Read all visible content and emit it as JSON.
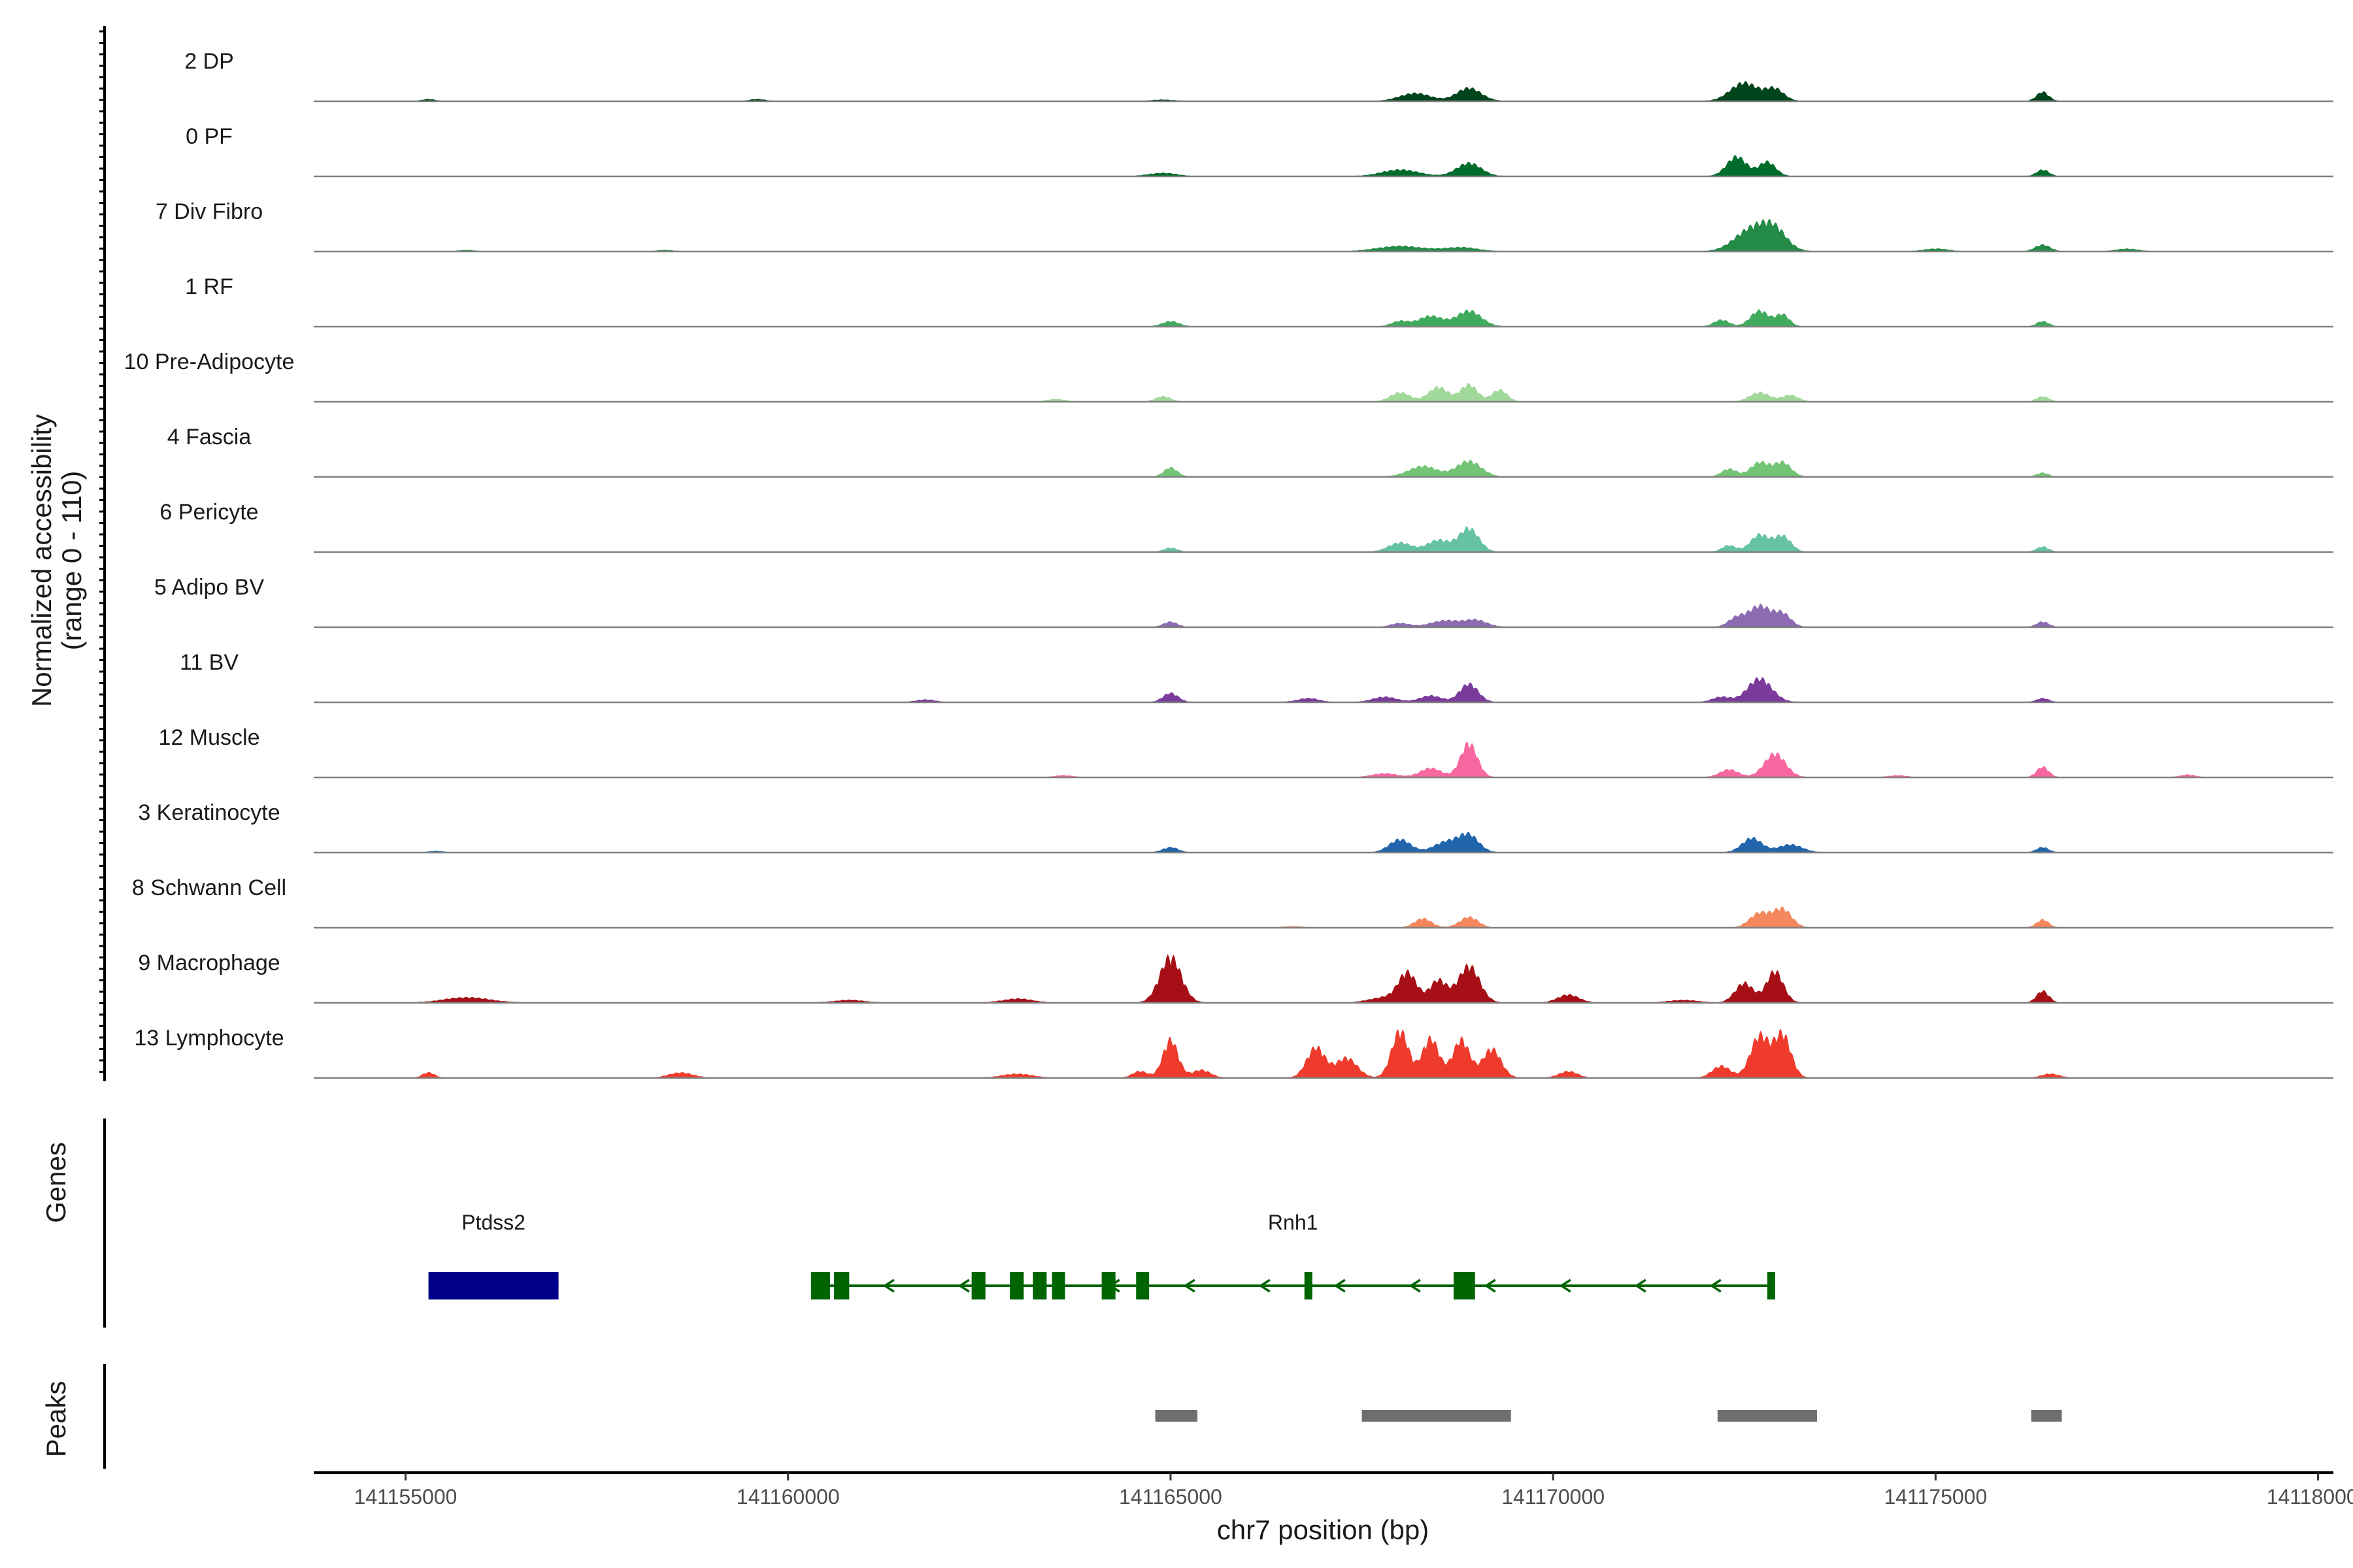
{
  "chart_data": {
    "type": "area",
    "title": "",
    "chromosome": "chr7",
    "xlabel": "chr7 position (bp)",
    "ylabel": "Normalized accessibility",
    "ylabel_range": "(range 0 - 110)",
    "xlim": [
      141153800,
      141180200
    ],
    "ylim": [
      0,
      110
    ],
    "x_ticks": [
      141155000,
      141160000,
      141165000,
      141170000,
      141175000,
      141180000
    ],
    "x_tick_labels": [
      "141155000",
      "141160000",
      "141165000",
      "141170000",
      "141175000",
      "141180000"
    ],
    "coverage_region": [
      141153800,
      141180200
    ],
    "panels": {
      "genes_label": "Genes",
      "peaks_label": "Peaks"
    },
    "series": [
      {
        "name": "2 DP",
        "color": "#00441b",
        "peaks": [
          [
            141155300,
            3,
            80
          ],
          [
            141159600,
            3,
            100
          ],
          [
            141164900,
            2,
            150
          ],
          [
            141168200,
            12,
            200
          ],
          [
            141168900,
            20,
            160
          ],
          [
            141172500,
            28,
            180
          ],
          [
            141172900,
            18,
            120
          ],
          [
            141176400,
            14,
            80
          ]
        ]
      },
      {
        "name": "0 PF",
        "color": "#006d2c",
        "peaks": [
          [
            141164900,
            5,
            180
          ],
          [
            141168000,
            10,
            240
          ],
          [
            141168900,
            20,
            160
          ],
          [
            141172400,
            30,
            130
          ],
          [
            141172800,
            22,
            110
          ],
          [
            141176400,
            10,
            80
          ]
        ]
      },
      {
        "name": "7 Div Fibro",
        "color": "#238b45",
        "peaks": [
          [
            141155800,
            2,
            100
          ],
          [
            141158400,
            2,
            100
          ],
          [
            141168000,
            8,
            300
          ],
          [
            141168800,
            6,
            220
          ],
          [
            141172600,
            34,
            220
          ],
          [
            141172900,
            28,
            160
          ],
          [
            141175000,
            4,
            160
          ],
          [
            141176400,
            10,
            100
          ],
          [
            141177500,
            4,
            140
          ]
        ]
      },
      {
        "name": "1 RF",
        "color": "#41ab5d",
        "peaks": [
          [
            141165000,
            8,
            110
          ],
          [
            141168000,
            8,
            110
          ],
          [
            141168400,
            16,
            160
          ],
          [
            141168900,
            24,
            160
          ],
          [
            141172200,
            10,
            100
          ],
          [
            141172700,
            24,
            120
          ],
          [
            141173000,
            18,
            90
          ],
          [
            141176400,
            8,
            80
          ]
        ]
      },
      {
        "name": "10 Pre-Adipocyte",
        "color": "#a1d99b",
        "peaks": [
          [
            141163500,
            4,
            120
          ],
          [
            141164900,
            8,
            100
          ],
          [
            141168000,
            14,
            130
          ],
          [
            141168500,
            22,
            130
          ],
          [
            141168900,
            26,
            110
          ],
          [
            141169300,
            18,
            100
          ],
          [
            141172700,
            14,
            130
          ],
          [
            141173100,
            10,
            110
          ],
          [
            141176400,
            8,
            80
          ]
        ]
      },
      {
        "name": "4 Fascia",
        "color": "#74c476",
        "peaks": [
          [
            141165000,
            14,
            90
          ],
          [
            141168300,
            16,
            190
          ],
          [
            141168900,
            24,
            160
          ],
          [
            141172300,
            12,
            100
          ],
          [
            141172700,
            22,
            120
          ],
          [
            141173000,
            22,
            110
          ],
          [
            141176400,
            6,
            80
          ]
        ]
      },
      {
        "name": "6 Pericyte",
        "color": "#66c2a4",
        "peaks": [
          [
            141165000,
            6,
            90
          ],
          [
            141168000,
            14,
            150
          ],
          [
            141168500,
            18,
            150
          ],
          [
            141168900,
            36,
            130
          ],
          [
            141172300,
            10,
            90
          ],
          [
            141172700,
            26,
            120
          ],
          [
            141173000,
            24,
            110
          ],
          [
            141176400,
            8,
            80
          ]
        ]
      },
      {
        "name": "5 Adipo BV",
        "color": "#8c6bb1",
        "peaks": [
          [
            141165000,
            8,
            90
          ],
          [
            141168000,
            6,
            120
          ],
          [
            141168600,
            10,
            200
          ],
          [
            141169000,
            10,
            140
          ],
          [
            141172400,
            14,
            110
          ],
          [
            141172700,
            32,
            140
          ],
          [
            141173000,
            20,
            110
          ],
          [
            141176400,
            8,
            80
          ]
        ]
      },
      {
        "name": "11 BV",
        "color": "#7a3b9b",
        "peaks": [
          [
            141161800,
            4,
            120
          ],
          [
            141165000,
            14,
            100
          ],
          [
            141166800,
            6,
            140
          ],
          [
            141167800,
            8,
            160
          ],
          [
            141168400,
            10,
            140
          ],
          [
            141168900,
            28,
            120
          ],
          [
            141172200,
            8,
            120
          ],
          [
            141172700,
            36,
            160
          ],
          [
            141176400,
            6,
            80
          ]
        ]
      },
      {
        "name": "12 Muscle",
        "color": "#f768a1",
        "peaks": [
          [
            141163600,
            3,
            120
          ],
          [
            141167800,
            6,
            160
          ],
          [
            141168400,
            14,
            140
          ],
          [
            141168900,
            52,
            110
          ],
          [
            141172300,
            12,
            120
          ],
          [
            141172900,
            36,
            140
          ],
          [
            141174500,
            3,
            120
          ],
          [
            141176400,
            16,
            80
          ],
          [
            141178300,
            4,
            100
          ]
        ]
      },
      {
        "name": "3 Keratinocyte",
        "color": "#2166ac",
        "peaks": [
          [
            141155400,
            2,
            100
          ],
          [
            141165000,
            8,
            100
          ],
          [
            141168000,
            20,
            140
          ],
          [
            141168600,
            16,
            160
          ],
          [
            141168900,
            26,
            130
          ],
          [
            141172600,
            22,
            130
          ],
          [
            141173100,
            12,
            160
          ],
          [
            141176400,
            8,
            80
          ]
        ]
      },
      {
        "name": "8 Schwann Cell",
        "color": "#f4875e",
        "peaks": [
          [
            141166600,
            2,
            120
          ],
          [
            141168300,
            14,
            110
          ],
          [
            141168900,
            16,
            120
          ],
          [
            141172700,
            22,
            130
          ],
          [
            141173000,
            28,
            120
          ],
          [
            141176400,
            12,
            80
          ]
        ]
      },
      {
        "name": "9 Macrophage",
        "color": "#a50f15",
        "peaks": [
          [
            141155800,
            8,
            300
          ],
          [
            141160800,
            4,
            200
          ],
          [
            141163000,
            6,
            200
          ],
          [
            141165000,
            70,
            140
          ],
          [
            141167800,
            8,
            200
          ],
          [
            141168100,
            44,
            120
          ],
          [
            141168500,
            34,
            110
          ],
          [
            141168900,
            56,
            140
          ],
          [
            141170200,
            12,
            140
          ],
          [
            141171700,
            4,
            200
          ],
          [
            141172500,
            30,
            120
          ],
          [
            141172900,
            48,
            110
          ],
          [
            141176400,
            18,
            80
          ]
        ]
      },
      {
        "name": "13 Lymphocyte",
        "color": "#ef3b2c",
        "peaks": [
          [
            141155300,
            8,
            80
          ],
          [
            141158600,
            8,
            160
          ],
          [
            141163000,
            6,
            200
          ],
          [
            141164600,
            10,
            100
          ],
          [
            141165000,
            58,
            100
          ],
          [
            141165400,
            12,
            120
          ],
          [
            141166900,
            46,
            120
          ],
          [
            141167300,
            30,
            140
          ],
          [
            141168000,
            72,
            110
          ],
          [
            141168400,
            60,
            110
          ],
          [
            141168800,
            58,
            110
          ],
          [
            141169200,
            44,
            120
          ],
          [
            141170200,
            10,
            120
          ],
          [
            141172200,
            18,
            120
          ],
          [
            141172700,
            64,
            120
          ],
          [
            141173000,
            66,
            110
          ],
          [
            141176500,
            6,
            120
          ]
        ]
      }
    ],
    "genes": [
      {
        "name": "Ptdss2",
        "color": "#00008b",
        "strand": "+",
        "start": 141155300,
        "end": 141157000,
        "exons": [
          [
            141155300,
            141157000
          ]
        ]
      },
      {
        "name": "Rnh1",
        "color": "#006400",
        "strand": "-",
        "start": 141160300,
        "end": 141172900,
        "exons": [
          [
            141160300,
            141160550
          ],
          [
            141160600,
            141160800
          ],
          [
            141162400,
            141162580
          ],
          [
            141162900,
            141163080
          ],
          [
            141163200,
            141163380
          ],
          [
            141163450,
            141163620
          ],
          [
            141164100,
            141164280
          ],
          [
            141164550,
            141164720
          ],
          [
            141166750,
            141166820
          ],
          [
            141168700,
            141168980
          ],
          [
            141172800,
            141172900
          ]
        ]
      }
    ],
    "peaks": [
      [
        141164800,
        141165350
      ],
      [
        141167500,
        141169450
      ],
      [
        141172150,
        141173450
      ],
      [
        141176250,
        141176650
      ]
    ]
  }
}
